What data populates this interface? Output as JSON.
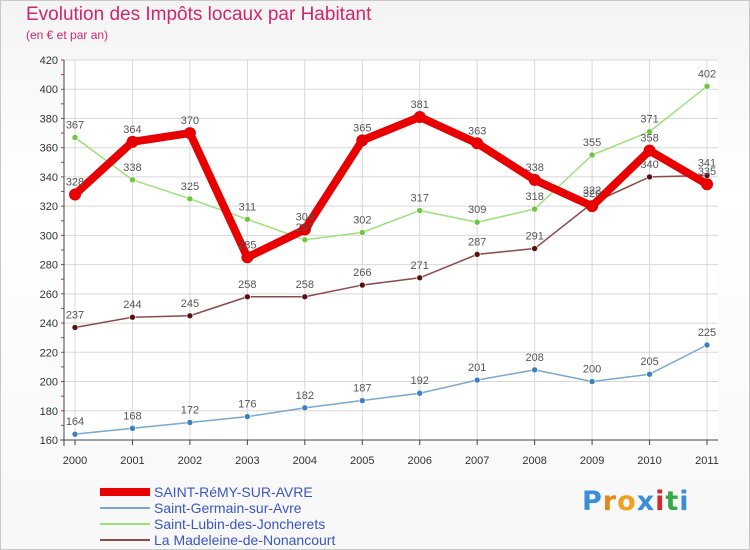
{
  "chart_data": {
    "type": "line",
    "title": "Evolution des Impôts locaux par Habitant",
    "subtitle": "(en € et par an)",
    "xlabel": "",
    "ylabel": "",
    "ylim": [
      160,
      420
    ],
    "ystep": 20,
    "y_ticks": [
      "160",
      "180",
      "200",
      "220",
      "240",
      "260",
      "280",
      "300",
      "320",
      "340",
      "360",
      "380",
      "400",
      "420"
    ],
    "categories": [
      "2000",
      "2001",
      "2002",
      "2003",
      "2004",
      "2005",
      "2006",
      "2007",
      "2008",
      "2009",
      "2010",
      "2011"
    ],
    "grid": true,
    "legend": "bottom-left",
    "series": [
      {
        "name": "SAINT-RéMY-SUR-AVRE",
        "color": "#e80000",
        "marker": "#e80000",
        "labelColor": "#555555",
        "width": 8,
        "values": [
          328,
          364,
          370,
          285,
          304,
          365,
          381,
          363,
          338,
          320,
          358,
          335
        ],
        "labels": [
          "328",
          "364",
          "370",
          "285",
          "304",
          "365",
          "381",
          "363",
          "338",
          "320",
          "358",
          "335"
        ]
      },
      {
        "name": "Saint-Germain-sur-Avre",
        "color": "#7ba7d0",
        "marker": "#3e7fc0",
        "labelColor": "#555555",
        "width": 1.5,
        "values": [
          164,
          168,
          172,
          176,
          182,
          187,
          192,
          201,
          208,
          200,
          205,
          225
        ],
        "labels": [
          "164",
          "168",
          "172",
          "176",
          "182",
          "187",
          "192",
          "201",
          "208",
          "200",
          "205",
          "225"
        ]
      },
      {
        "name": "Saint-Lubin-des-Joncherets",
        "color": "#9fe07a",
        "marker": "#6cc73e",
        "labelColor": "#555555",
        "width": 1.5,
        "values": [
          367,
          338,
          325,
          311,
          297,
          302,
          317,
          309,
          318,
          355,
          371,
          402
        ],
        "labels": [
          "367",
          "338",
          "325",
          "311",
          "297",
          "302",
          "317",
          "309",
          "318",
          "355",
          "371",
          "402"
        ]
      },
      {
        "name": "La Madeleine-de-Nonancourt",
        "color": "#8b4a4a",
        "marker": "#5a1010",
        "labelColor": "#555555",
        "width": 1.5,
        "values": [
          237,
          244,
          245,
          258,
          258,
          266,
          271,
          287,
          291,
          322,
          340,
          341
        ],
        "labels": [
          "237",
          "244",
          "245",
          "258",
          "258",
          "266",
          "271",
          "287",
          "291",
          "322",
          "340",
          "341"
        ]
      }
    ]
  },
  "brand": {
    "text": "Proxiti",
    "colors": [
      "#3a8fd8",
      "#e8861a",
      "#f0a020",
      "#3a8fd8",
      "#d02a2a",
      "#3aa84a",
      "#3a8fd8"
    ]
  }
}
